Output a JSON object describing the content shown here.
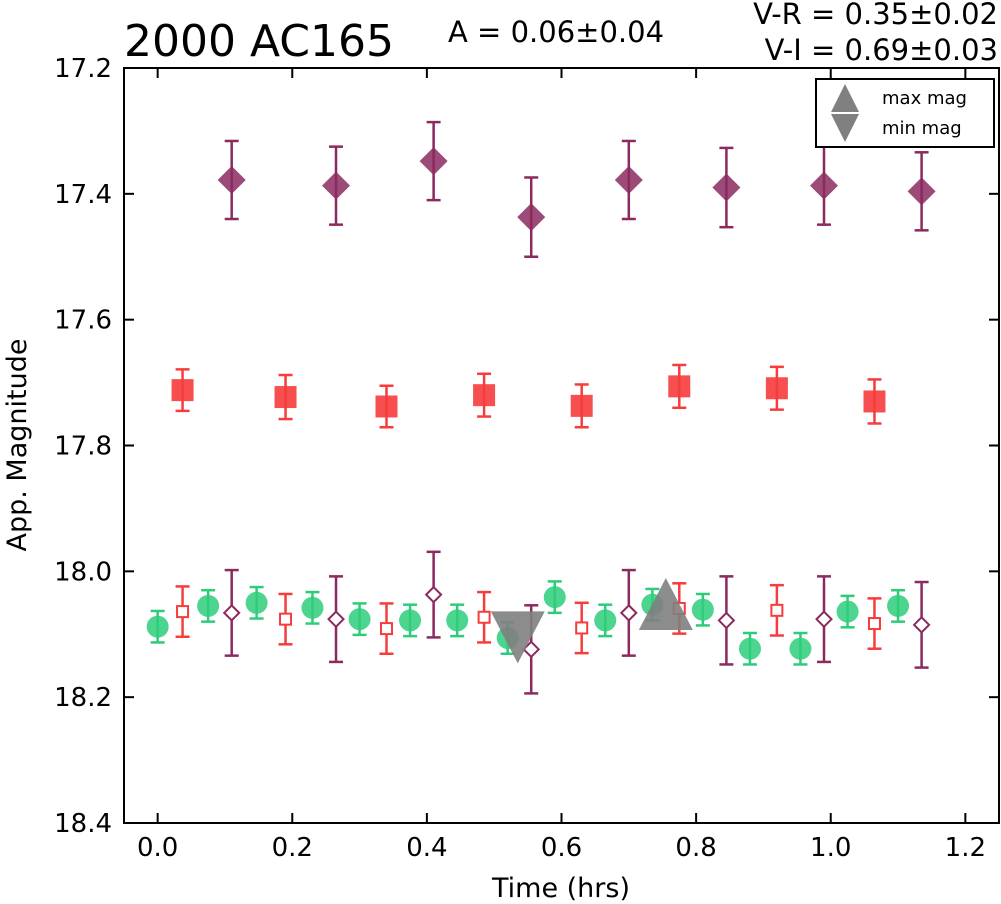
{
  "chart_data": {
    "type": "scatter",
    "title": "2000 AC165",
    "amplitude_text": "A  = 0.06±0.04",
    "color_text_vr": "V-R = 0.35±0.02",
    "color_text_vi": "V-I  = 0.69±0.03",
    "xlabel": "Time (hrs)",
    "ylabel": "App. Magnitude",
    "xlim": [
      -0.05,
      1.25
    ],
    "ylim": [
      18.4,
      17.2
    ],
    "y_inverted": true,
    "grid": false,
    "xticks": [
      "0.0",
      "0.2",
      "0.4",
      "0.6",
      "0.8",
      "1.0",
      "1.2"
    ],
    "yticks": [
      "17.2",
      "17.4",
      "17.6",
      "17.8",
      "18.0",
      "18.2",
      "18.4"
    ],
    "legend": {
      "placement": "top-right",
      "entries": [
        {
          "label": "max mag",
          "marker": "triangle-up",
          "color": "#808080"
        },
        {
          "label": "min mag",
          "marker": "triangle-down",
          "color": "#808080"
        }
      ]
    },
    "series": [
      {
        "marker": "diamond-filled",
        "color": "#8b2a5f",
        "x": [
          0.11,
          0.265,
          0.41,
          0.555,
          0.7,
          0.845,
          0.99,
          1.135
        ],
        "y": [
          17.378,
          17.387,
          17.348,
          17.437,
          17.378,
          17.39,
          17.387,
          17.396
        ],
        "err": [
          0.062,
          0.062,
          0.062,
          0.063,
          0.062,
          0.063,
          0.062,
          0.062
        ]
      },
      {
        "marker": "square-filled",
        "color": "#f63c3c",
        "x": [
          0.037,
          0.19,
          0.34,
          0.485,
          0.63,
          0.775,
          0.92,
          1.065
        ],
        "y": [
          17.712,
          17.723,
          17.738,
          17.72,
          17.737,
          17.706,
          17.709,
          17.73
        ],
        "err": [
          0.033,
          0.035,
          0.033,
          0.034,
          0.034,
          0.034,
          0.034,
          0.035
        ]
      },
      {
        "marker": "circle-filled",
        "color": "#2ecc7a",
        "x": [
          0.0,
          0.075,
          0.147,
          0.23,
          0.3,
          0.375,
          0.445,
          0.52,
          0.59,
          0.665,
          0.735,
          0.81,
          0.88,
          0.955,
          1.025,
          1.1
        ],
        "y": [
          18.088,
          18.055,
          18.05,
          18.058,
          18.076,
          18.078,
          18.078,
          18.106,
          18.041,
          18.078,
          18.053,
          18.061,
          18.123,
          18.123,
          18.064,
          18.055
        ],
        "err": [
          0.025,
          0.025,
          0.025,
          0.025,
          0.025,
          0.025,
          0.025,
          0.025,
          0.025,
          0.025,
          0.025,
          0.025,
          0.025,
          0.025,
          0.025,
          0.025
        ]
      },
      {
        "marker": "square-open",
        "color": "#f63c3c",
        "x": [
          0.037,
          0.19,
          0.34,
          0.485,
          0.63,
          0.775,
          0.92,
          1.065
        ],
        "y": [
          18.064,
          18.076,
          18.091,
          18.073,
          18.09,
          18.059,
          18.062,
          18.083
        ],
        "err": [
          0.04,
          0.04,
          0.04,
          0.04,
          0.04,
          0.04,
          0.04,
          0.04
        ]
      },
      {
        "marker": "diamond-open",
        "color": "#8b2a5f",
        "x": [
          0.11,
          0.265,
          0.41,
          0.555,
          0.7,
          0.845,
          0.99,
          1.135
        ],
        "y": [
          18.066,
          18.076,
          18.037,
          18.124,
          18.066,
          18.078,
          18.076,
          18.085
        ],
        "err": [
          0.068,
          0.068,
          0.068,
          0.07,
          0.068,
          0.07,
          0.068,
          0.068
        ]
      }
    ],
    "extrema": [
      {
        "type": "min",
        "marker": "triangle-down",
        "x": 0.535,
        "y": 18.105,
        "color": "#808080"
      },
      {
        "type": "max",
        "marker": "triangle-up",
        "x": 0.755,
        "y": 18.052,
        "color": "#808080"
      }
    ]
  }
}
